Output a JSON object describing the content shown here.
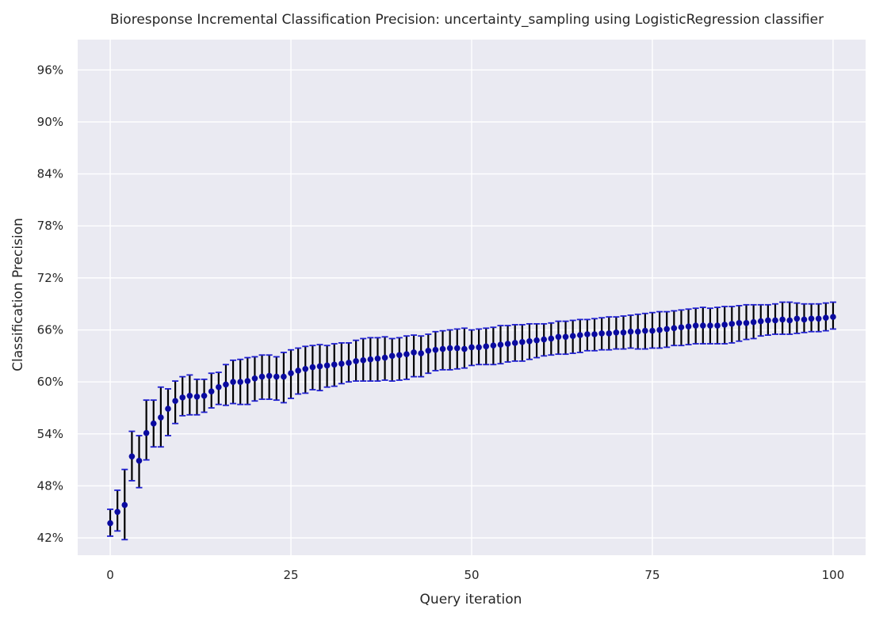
{
  "chart_data": {
    "type": "scatter",
    "title": "Bioresponse Incremental Classification Precision: uncertainty_sampling using LogisticRegression classifier",
    "xlabel": "Query iteration",
    "ylabel": "Classification Precision",
    "xlim": [
      -4.5,
      104.5
    ],
    "ylim": [
      0.4,
      0.995
    ],
    "xticks": [
      0,
      25,
      50,
      75,
      100
    ],
    "xtick_labels": [
      "0",
      "25",
      "50",
      "75",
      "100"
    ],
    "yticks": [
      0.42,
      0.48,
      0.54,
      0.6,
      0.66,
      0.72,
      0.78,
      0.84,
      0.9,
      0.96
    ],
    "ytick_labels": [
      "42%",
      "48%",
      "54%",
      "60%",
      "66%",
      "72%",
      "78%",
      "84%",
      "90%",
      "96%"
    ],
    "grid": true,
    "background": "#eaeaf2",
    "marker_color": "#0a0aa0",
    "errorbar_color": "#000000",
    "cap_color": "#1f1fd0",
    "series": [
      {
        "x": [
          0,
          1,
          2,
          3,
          4,
          5,
          6,
          7,
          8,
          9,
          10,
          11,
          12,
          13,
          14,
          15,
          16,
          17,
          18,
          19,
          20,
          21,
          22,
          23,
          24,
          25,
          26,
          27,
          28,
          29,
          30,
          31,
          32,
          33,
          34,
          35,
          36,
          37,
          38,
          39,
          40,
          41,
          42,
          43,
          44,
          45,
          46,
          47,
          48,
          49,
          50,
          51,
          52,
          53,
          54,
          55,
          56,
          57,
          58,
          59,
          60,
          61,
          62,
          63,
          64,
          65,
          66,
          67,
          68,
          69,
          70,
          71,
          72,
          73,
          74,
          75,
          76,
          77,
          78,
          79,
          80,
          81,
          82,
          83,
          84,
          85,
          86,
          87,
          88,
          89,
          90,
          91,
          92,
          93,
          94,
          95,
          96,
          97,
          98,
          99,
          100
        ],
        "y": [
          0.437,
          0.45,
          0.458,
          0.514,
          0.509,
          0.541,
          0.552,
          0.559,
          0.569,
          0.578,
          0.582,
          0.584,
          0.583,
          0.584,
          0.589,
          0.594,
          0.597,
          0.6,
          0.6,
          0.601,
          0.604,
          0.606,
          0.607,
          0.606,
          0.606,
          0.61,
          0.613,
          0.615,
          0.617,
          0.618,
          0.619,
          0.62,
          0.621,
          0.622,
          0.624,
          0.625,
          0.626,
          0.627,
          0.628,
          0.63,
          0.631,
          0.632,
          0.634,
          0.633,
          0.636,
          0.637,
          0.638,
          0.639,
          0.639,
          0.638,
          0.64,
          0.64,
          0.641,
          0.642,
          0.643,
          0.644,
          0.645,
          0.646,
          0.647,
          0.648,
          0.649,
          0.65,
          0.652,
          0.652,
          0.653,
          0.654,
          0.655,
          0.655,
          0.656,
          0.656,
          0.657,
          0.657,
          0.658,
          0.658,
          0.659,
          0.659,
          0.66,
          0.661,
          0.662,
          0.663,
          0.664,
          0.665,
          0.665,
          0.665,
          0.665,
          0.666,
          0.667,
          0.668,
          0.668,
          0.669,
          0.67,
          0.671,
          0.671,
          0.672,
          0.671,
          0.673,
          0.672,
          0.673,
          0.673,
          0.674,
          0.675
        ],
        "y_lower": [
          0.422,
          0.428,
          0.418,
          0.486,
          0.478,
          0.51,
          0.525,
          0.525,
          0.538,
          0.552,
          0.561,
          0.562,
          0.562,
          0.565,
          0.57,
          0.574,
          0.573,
          0.575,
          0.574,
          0.574,
          0.578,
          0.58,
          0.58,
          0.579,
          0.576,
          0.581,
          0.586,
          0.587,
          0.591,
          0.59,
          0.594,
          0.595,
          0.598,
          0.6,
          0.601,
          0.601,
          0.601,
          0.601,
          0.602,
          0.601,
          0.602,
          0.603,
          0.606,
          0.606,
          0.61,
          0.613,
          0.614,
          0.614,
          0.615,
          0.616,
          0.619,
          0.62,
          0.62,
          0.62,
          0.621,
          0.623,
          0.624,
          0.624,
          0.626,
          0.628,
          0.63,
          0.631,
          0.632,
          0.632,
          0.633,
          0.634,
          0.636,
          0.636,
          0.637,
          0.637,
          0.638,
          0.638,
          0.639,
          0.638,
          0.638,
          0.639,
          0.639,
          0.64,
          0.642,
          0.642,
          0.643,
          0.644,
          0.644,
          0.644,
          0.644,
          0.644,
          0.645,
          0.647,
          0.649,
          0.65,
          0.653,
          0.654,
          0.655,
          0.655,
          0.655,
          0.656,
          0.657,
          0.658,
          0.658,
          0.659,
          0.661
        ],
        "y_upper": [
          0.453,
          0.475,
          0.499,
          0.543,
          0.538,
          0.579,
          0.579,
          0.594,
          0.592,
          0.601,
          0.606,
          0.608,
          0.603,
          0.603,
          0.61,
          0.611,
          0.62,
          0.625,
          0.626,
          0.628,
          0.629,
          0.631,
          0.631,
          0.629,
          0.634,
          0.637,
          0.639,
          0.641,
          0.642,
          0.643,
          0.642,
          0.644,
          0.645,
          0.645,
          0.648,
          0.65,
          0.651,
          0.651,
          0.652,
          0.65,
          0.651,
          0.653,
          0.654,
          0.653,
          0.655,
          0.658,
          0.659,
          0.66,
          0.661,
          0.662,
          0.66,
          0.661,
          0.662,
          0.663,
          0.665,
          0.665,
          0.666,
          0.666,
          0.667,
          0.667,
          0.667,
          0.668,
          0.67,
          0.67,
          0.671,
          0.672,
          0.672,
          0.673,
          0.674,
          0.675,
          0.675,
          0.676,
          0.677,
          0.678,
          0.679,
          0.68,
          0.681,
          0.681,
          0.682,
          0.683,
          0.684,
          0.685,
          0.686,
          0.685,
          0.686,
          0.687,
          0.687,
          0.688,
          0.689,
          0.689,
          0.689,
          0.689,
          0.69,
          0.692,
          0.692,
          0.691,
          0.69,
          0.69,
          0.69,
          0.691,
          0.692
        ]
      }
    ]
  }
}
